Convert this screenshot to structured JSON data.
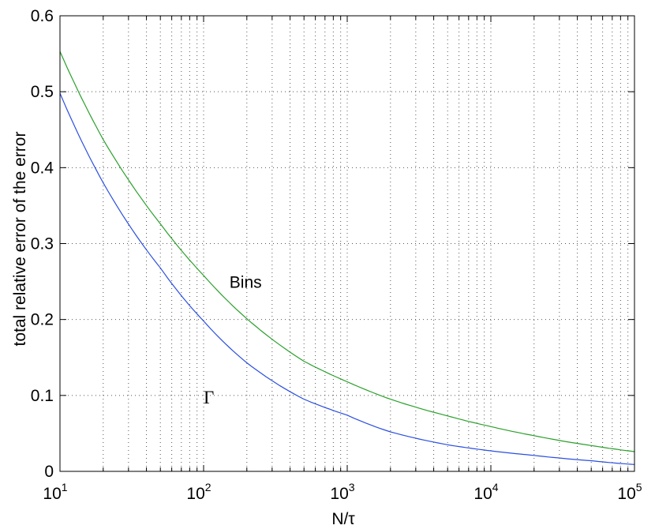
{
  "chart_data": {
    "type": "line",
    "xlabel": "N/τ",
    "ylabel": "total relative error of the error",
    "x_scale": "log",
    "xlim": [
      10,
      100000
    ],
    "ylim": [
      0,
      0.6
    ],
    "grid": true,
    "x_ticks": [
      {
        "base": "10",
        "exp": "1",
        "value": 10
      },
      {
        "base": "10",
        "exp": "2",
        "value": 100
      },
      {
        "base": "10",
        "exp": "3",
        "value": 1000
      },
      {
        "base": "10",
        "exp": "4",
        "value": 10000
      },
      {
        "base": "10",
        "exp": "5",
        "value": 100000
      }
    ],
    "y_ticks": [
      "0",
      "0.1",
      "0.2",
      "0.3",
      "0.4",
      "0.5",
      "0.6"
    ],
    "annotations": [
      {
        "text": "Bins",
        "series": "green"
      },
      {
        "text": "Γ",
        "series": "blue"
      }
    ],
    "series": [
      {
        "color": "#2aa02a",
        "x": [
          10,
          20,
          50,
          100,
          200,
          500,
          1000,
          2000,
          5000,
          10000,
          20000,
          50000,
          100000
        ],
        "y": [
          0.553,
          0.437,
          0.326,
          0.258,
          0.201,
          0.145,
          0.118,
          0.095,
          0.073,
          0.059,
          0.047,
          0.034,
          0.026
        ]
      },
      {
        "color": "#2b4fe0",
        "x": [
          10,
          20,
          50,
          100,
          200,
          500,
          1000,
          2000,
          5000,
          10000,
          20000,
          50000,
          100000
        ],
        "y": [
          0.498,
          0.38,
          0.268,
          0.198,
          0.143,
          0.095,
          0.074,
          0.052,
          0.035,
          0.027,
          0.021,
          0.014,
          0.009
        ]
      }
    ]
  }
}
